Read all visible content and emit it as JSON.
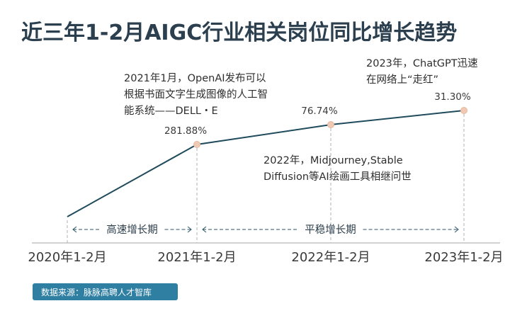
{
  "title": "近三年1-2月AIGC行业相关岗位同比增长趋势",
  "source": "数据来源：脉脉高聘人才智库",
  "chart_data": {
    "type": "line",
    "categories": [
      "2020年1-2月",
      "2021年1-2月",
      "2022年1-2月",
      "2023年1-2月"
    ],
    "series": [
      {
        "values": [
          0,
          281.88,
          76.74,
          31.3
        ]
      }
    ],
    "data_labels": [
      "",
      "281.88%",
      "76.74%",
      "31.30%"
    ],
    "phases": [
      {
        "label": "高速增长期",
        "from": "2020年1-2月",
        "to": "2021年1-2月"
      },
      {
        "label": "平稳增长期",
        "from": "2021年1-2月",
        "to": "2023年1-2月"
      }
    ],
    "annotations": [
      {
        "lines": [
          "2021年1月，OpenAI发布可以",
          "根据书面文字生成图像的人工智",
          "能系统——DELL・E"
        ]
      },
      {
        "lines": [
          "2022年，Midjourney,Stable",
          "Diffusion等AI绘画工具相继问世"
        ]
      },
      {
        "lines": [
          "2023年，ChatGPT迅速",
          "在网络上“走红”"
        ]
      }
    ],
    "colors": {
      "line": "#1f4b5c",
      "marker": "#f0c9b4",
      "phase": "#2b5566",
      "source_bg": "#2f7fa3"
    },
    "grid": false,
    "legend": "none"
  }
}
